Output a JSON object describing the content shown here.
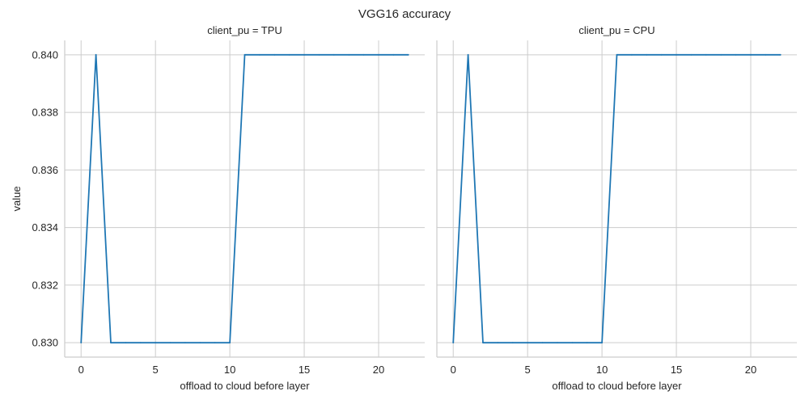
{
  "chart_data": {
    "type": "line",
    "title": "VGG16 accuracy",
    "ylabel": "value",
    "ylim": [
      0.8295,
      0.8405
    ],
    "yticks": [
      0.83,
      0.832,
      0.834,
      0.836,
      0.838,
      0.84
    ],
    "ytick_labels": [
      "0.830",
      "0.832",
      "0.834",
      "0.836",
      "0.838",
      "0.840"
    ],
    "xlim": [
      -1.1,
      23.1
    ],
    "xticks": [
      0,
      5,
      10,
      15,
      20
    ],
    "xtick_labels": [
      "0",
      "5",
      "10",
      "15",
      "20"
    ],
    "grid": true,
    "line_color": "#1f77b4",
    "panels": [
      {
        "title": "client_pu = TPU",
        "xlabel": "offload to cloud before layer",
        "x": [
          0,
          1,
          2,
          3,
          4,
          5,
          6,
          7,
          8,
          9,
          10,
          11,
          12,
          13,
          14,
          15,
          16,
          17,
          18,
          19,
          20,
          21,
          22
        ],
        "y": [
          0.83,
          0.84,
          0.83,
          0.83,
          0.83,
          0.83,
          0.83,
          0.83,
          0.83,
          0.83,
          0.83,
          0.84,
          0.84,
          0.84,
          0.84,
          0.84,
          0.84,
          0.84,
          0.84,
          0.84,
          0.84,
          0.84,
          0.84
        ]
      },
      {
        "title": "client_pu = CPU",
        "xlabel": "offload to cloud before layer",
        "x": [
          0,
          1,
          2,
          3,
          4,
          5,
          6,
          7,
          8,
          9,
          10,
          11,
          12,
          13,
          14,
          15,
          16,
          17,
          18,
          19,
          20,
          21,
          22
        ],
        "y": [
          0.83,
          0.84,
          0.83,
          0.83,
          0.83,
          0.83,
          0.83,
          0.83,
          0.83,
          0.83,
          0.83,
          0.84,
          0.84,
          0.84,
          0.84,
          0.84,
          0.84,
          0.84,
          0.84,
          0.84,
          0.84,
          0.84,
          0.84
        ]
      }
    ]
  }
}
